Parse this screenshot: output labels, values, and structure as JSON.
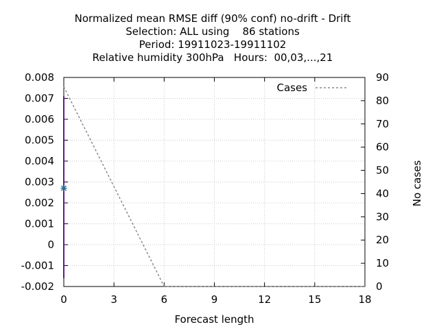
{
  "chart_data": {
    "type": "line",
    "title_lines": [
      "Normalized mean RMSE diff (90% conf) no-drift - Drift",
      "Selection: ALL using    86 stations",
      "Period: 19911023-19911102",
      "Relative humidity 300hPa   Hours:  00,03,...,21"
    ],
    "xlabel": "Forecast length",
    "ylabel": "",
    "y2label": "No cases",
    "xlim": [
      0,
      18
    ],
    "ylim": [
      -0.002,
      0.008
    ],
    "y2lim": [
      0,
      90
    ],
    "x_ticks": [
      0,
      3,
      6,
      9,
      12,
      15,
      18
    ],
    "x_tick_labels": [
      "0",
      "3",
      "6",
      "9",
      "12",
      "15",
      "18"
    ],
    "y_ticks": [
      -0.002,
      -0.001,
      0,
      0.001,
      0.002,
      0.003,
      0.004,
      0.005,
      0.006,
      0.007,
      0.008
    ],
    "y_tick_labels": [
      "-0.002",
      "-0.001",
      "0",
      "0.001",
      "0.002",
      "0.003",
      "0.004",
      "0.005",
      "0.006",
      "0.007",
      "0.008"
    ],
    "y2_ticks": [
      0,
      10,
      20,
      30,
      40,
      50,
      60,
      70,
      80,
      90
    ],
    "y2_tick_labels": [
      "0",
      "10",
      "20",
      "30",
      "40",
      "50",
      "60",
      "70",
      "80",
      "90"
    ],
    "grid": true,
    "legend_position": "top-right",
    "series": [
      {
        "name": "Cases",
        "axis": "y2",
        "style": "dashed",
        "color": "#888888",
        "x": [
          0,
          6,
          18
        ],
        "y": [
          86,
          0,
          0
        ]
      }
    ],
    "diff_point": {
      "x": 0,
      "mean": 0.0027,
      "conf_low": -0.0016,
      "conf_high": 0.0071,
      "color": "#2a6f97",
      "bar_color": "#5c1a8a"
    }
  }
}
